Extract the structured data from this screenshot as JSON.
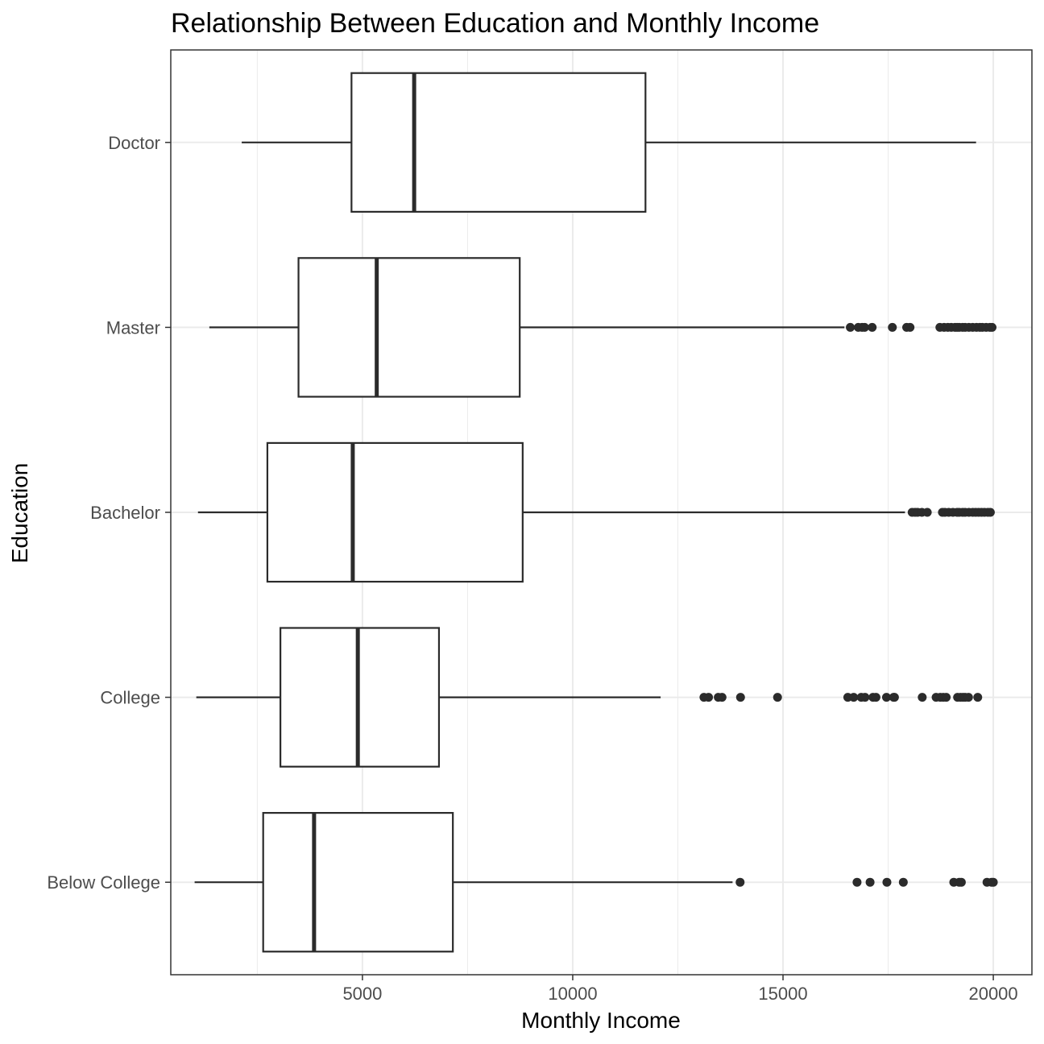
{
  "chart_data": {
    "type": "boxplot",
    "orientation": "horizontal",
    "title": "Relationship Between Education and Monthly Income",
    "xlabel": "Monthly Income",
    "ylabel": "Education",
    "xlim": [
      443,
      20918
    ],
    "xticks": [
      5000,
      10000,
      15000,
      20000
    ],
    "xtick_labels": [
      "5000",
      "10000",
      "15000",
      "20000"
    ],
    "grid": true,
    "colors": {
      "box_stroke": "#2b2b2b",
      "box_fill": "#ffffff",
      "outlier": "#2b2b2b",
      "grid": "#ebebeb",
      "panel_border": "#333333",
      "tick_text": "#4d4d4d"
    },
    "categories": [
      "Below College",
      "College",
      "Bachelor",
      "Master",
      "Doctor"
    ],
    "series": [
      {
        "category": "Below College",
        "whisker_low": 1010,
        "q1": 2640,
        "median": 3850,
        "q3": 7150,
        "whisker_high": 13800,
        "outliers": [
          13980,
          16760,
          17070,
          17470,
          17860,
          19060,
          19190,
          19240,
          19850,
          19960,
          20000
        ]
      },
      {
        "category": "College",
        "whisker_low": 1050,
        "q1": 3050,
        "median": 4890,
        "q3": 6820,
        "whisker_high": 12090,
        "outliers": [
          13120,
          13230,
          13460,
          13550,
          13990,
          14870,
          16540,
          16680,
          16860,
          16950,
          17140,
          17210,
          17460,
          17630,
          17650,
          18310,
          18640,
          18740,
          18810,
          18880,
          19150,
          19220,
          19280,
          19330,
          19410,
          19630
        ]
      },
      {
        "category": "Bachelor",
        "whisker_low": 1090,
        "q1": 2740,
        "median": 4770,
        "q3": 8810,
        "whisker_high": 17900,
        "outliers": [
          18070,
          18140,
          18200,
          18300,
          18430,
          18790,
          18850,
          18940,
          19040,
          19140,
          19190,
          19270,
          19330,
          19420,
          19510,
          19580,
          19650,
          19720,
          19790,
          19870,
          19930
        ]
      },
      {
        "category": "Master",
        "whisker_low": 1360,
        "q1": 3480,
        "median": 5340,
        "q3": 8740,
        "whisker_high": 16460,
        "outliers": [
          16600,
          16790,
          16880,
          16940,
          17120,
          17600,
          17940,
          18020,
          18730,
          18830,
          18920,
          19000,
          19090,
          19140,
          19190,
          19270,
          19330,
          19420,
          19510,
          19600,
          19680,
          19740,
          19830,
          19920,
          19970
        ]
      },
      {
        "category": "Doctor",
        "whisker_low": 2130,
        "q1": 4740,
        "median": 6230,
        "q3": 11730,
        "whisker_high": 19590,
        "outliers": []
      }
    ]
  }
}
